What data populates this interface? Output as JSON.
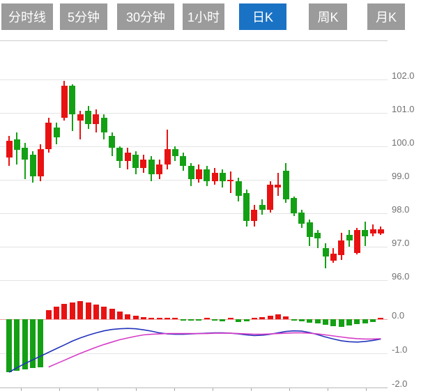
{
  "tabs": [
    {
      "label": "分时线",
      "active": false
    },
    {
      "label": "5分钟",
      "active": false
    },
    {
      "label": "30分钟",
      "active": false
    },
    {
      "label": "1小时",
      "active": false
    },
    {
      "label": "日K",
      "active": true
    },
    {
      "label": "周K",
      "active": false
    },
    {
      "label": "月K",
      "active": false
    }
  ],
  "colors": {
    "up": "#e81212",
    "down": "#14a014",
    "dif_line": "#2233bb",
    "dea_line": "#d63cc8",
    "macd_zero_line": "#f0a0a0",
    "grid": "#e4e4e4",
    "top_border": "#cccccc",
    "bottom_axis": "#b8b8b8",
    "axis_text": "#707070",
    "tab_bg": "#9b9b9b",
    "tab_active_bg": "#1a72c4",
    "tab_text": "#ffffff"
  },
  "chart_data": {
    "type": "candlestick",
    "timeframe_selected": "日K",
    "panels": [
      {
        "name": "price",
        "ylabel_ticks": [
          "102.0",
          "101.0",
          "100.0",
          "99.0",
          "98.0",
          "97.0",
          "96.0"
        ],
        "ylim": [
          95.8,
          102.3
        ],
        "grid": true,
        "candles_ohlc": [
          [
            99.65,
            100.3,
            99.4,
            100.15
          ],
          [
            100.2,
            100.4,
            99.45,
            99.88
          ],
          [
            99.95,
            100.1,
            99.0,
            99.6
          ],
          [
            99.75,
            99.85,
            98.9,
            99.1
          ],
          [
            99.1,
            100.05,
            98.95,
            99.9
          ],
          [
            99.9,
            100.85,
            99.8,
            100.7
          ],
          [
            100.55,
            100.7,
            100.05,
            100.25
          ],
          [
            100.85,
            101.95,
            100.75,
            101.8
          ],
          [
            101.8,
            101.85,
            100.45,
            100.95
          ],
          [
            100.75,
            101.05,
            100.2,
            100.95
          ],
          [
            101.05,
            101.2,
            100.5,
            100.65
          ],
          [
            100.65,
            101.1,
            100.4,
            100.95
          ],
          [
            100.85,
            100.95,
            100.2,
            100.4
          ],
          [
            100.3,
            100.4,
            99.7,
            99.95
          ],
          [
            99.95,
            100.0,
            99.35,
            99.55
          ],
          [
            99.55,
            99.95,
            99.3,
            99.8
          ],
          [
            99.75,
            99.85,
            99.15,
            99.35
          ],
          [
            99.35,
            99.75,
            99.2,
            99.6
          ],
          [
            99.6,
            99.7,
            98.95,
            99.15
          ],
          [
            99.15,
            99.6,
            99.0,
            99.45
          ],
          [
            99.45,
            100.5,
            99.3,
            99.9
          ],
          [
            99.9,
            100.0,
            99.55,
            99.7
          ],
          [
            99.7,
            99.8,
            99.25,
            99.4
          ],
          [
            99.4,
            99.5,
            98.8,
            99.0
          ],
          [
            99.0,
            99.45,
            98.9,
            99.3
          ],
          [
            99.3,
            99.4,
            98.8,
            98.95
          ],
          [
            98.95,
            99.35,
            98.85,
            99.2
          ],
          [
            99.2,
            99.3,
            98.75,
            98.95
          ],
          [
            98.95,
            99.25,
            98.6,
            99.0
          ],
          [
            98.95,
            99.05,
            98.35,
            98.5
          ],
          [
            98.6,
            98.7,
            97.6,
            97.75
          ],
          [
            97.75,
            98.25,
            97.6,
            98.1
          ],
          [
            98.25,
            98.4,
            97.95,
            98.1
          ],
          [
            98.1,
            98.95,
            98.0,
            98.85
          ],
          [
            98.75,
            99.2,
            98.5,
            98.85
          ],
          [
            99.27,
            99.5,
            98.3,
            98.4
          ],
          [
            98.44,
            98.5,
            97.9,
            97.98
          ],
          [
            98.02,
            98.1,
            97.55,
            97.67
          ],
          [
            97.71,
            97.8,
            97.0,
            97.29
          ],
          [
            97.4,
            97.5,
            96.95,
            97.23
          ],
          [
            96.95,
            97.1,
            96.35,
            96.7
          ],
          [
            96.58,
            96.95,
            96.5,
            96.79
          ],
          [
            96.73,
            97.4,
            96.6,
            97.17
          ],
          [
            97.35,
            97.5,
            97.0,
            97.17
          ],
          [
            96.81,
            97.55,
            96.75,
            97.48
          ],
          [
            97.48,
            97.73,
            97.0,
            97.31
          ],
          [
            97.38,
            97.65,
            97.3,
            97.52
          ],
          [
            97.38,
            97.6,
            97.35,
            97.52
          ]
        ]
      },
      {
        "name": "macd",
        "ylabel_ticks": [
          "0.0",
          "-1.0",
          "-2.0"
        ],
        "ylim": [
          -2.1,
          0.6
        ],
        "grid": true,
        "histogram": [
          -1.55,
          -1.5,
          -1.46,
          -1.43,
          -1.4,
          0.27,
          0.37,
          0.45,
          0.5,
          0.53,
          0.49,
          0.43,
          0.37,
          0.3,
          0.22,
          0.15,
          0.1,
          0.06,
          0.03,
          0.04,
          0.05,
          0.04,
          -0.03,
          -0.05,
          -0.04,
          0.03,
          -0.04,
          -0.06,
          0.03,
          -0.08,
          -0.06,
          0.04,
          0.06,
          0.1,
          0.15,
          0.08,
          -0.04,
          -0.06,
          -0.1,
          -0.13,
          -0.16,
          -0.2,
          -0.22,
          -0.18,
          -0.15,
          -0.12,
          -0.08,
          0.03
        ],
        "dif": [
          -1.55,
          -1.42,
          -1.3,
          -1.19,
          -1.08,
          -0.97,
          -0.86,
          -0.75,
          -0.64,
          -0.55,
          -0.47,
          -0.4,
          -0.34,
          -0.3,
          -0.28,
          -0.27,
          -0.28,
          -0.31,
          -0.35,
          -0.4,
          -0.43,
          -0.44,
          -0.44,
          -0.43,
          -0.42,
          -0.41,
          -0.4,
          -0.4,
          -0.41,
          -0.43,
          -0.46,
          -0.48,
          -0.47,
          -0.44,
          -0.4,
          -0.36,
          -0.34,
          -0.35,
          -0.39,
          -0.45,
          -0.52,
          -0.58,
          -0.63,
          -0.66,
          -0.67,
          -0.65,
          -0.62,
          -0.58
        ],
        "dea": [
          null,
          null,
          null,
          null,
          null,
          -1.4,
          -1.3,
          -1.2,
          -1.1,
          -1.0,
          -0.91,
          -0.82,
          -0.74,
          -0.67,
          -0.6,
          -0.55,
          -0.5,
          -0.46,
          -0.44,
          -0.43,
          -0.42,
          -0.42,
          -0.42,
          -0.42,
          -0.42,
          -0.42,
          -0.41,
          -0.41,
          -0.41,
          -0.42,
          -0.43,
          -0.44,
          -0.44,
          -0.43,
          -0.42,
          -0.41,
          -0.4,
          -0.4,
          -0.41,
          -0.43,
          -0.46,
          -0.49,
          -0.52,
          -0.55,
          -0.57,
          -0.58,
          -0.58,
          -0.57
        ]
      }
    ]
  }
}
